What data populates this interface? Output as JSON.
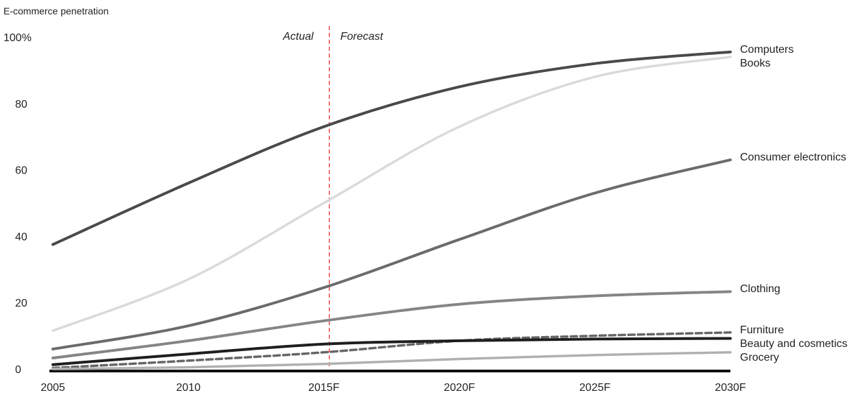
{
  "chart_data": {
    "type": "line",
    "ylabel": "E-commerce penetration",
    "x": [
      2005,
      2010,
      2015,
      2020,
      2025,
      2030
    ],
    "x_tick_labels": [
      "2005",
      "2010",
      "2015F",
      "2020F",
      "2025F",
      "2030F"
    ],
    "y_tick_labels": [
      "0",
      "20",
      "40",
      "60",
      "80",
      "100%"
    ],
    "y_ticks": [
      0,
      20,
      40,
      60,
      80,
      100
    ],
    "ylim": [
      0,
      100
    ],
    "xlim": [
      2005,
      2030
    ],
    "grid": false,
    "divider": {
      "x": 2015.2,
      "left_label": "Actual",
      "right_label": "Forecast",
      "color": "#e3302f"
    },
    "series": [
      {
        "name": "Computers",
        "values": [
          37.5,
          56,
          73,
          85,
          92,
          95.5
        ],
        "color": "#4a4a4a",
        "dashed": false,
        "width": 4
      },
      {
        "name": "Books",
        "values": [
          11.5,
          27,
          50,
          73,
          88,
          94
        ],
        "color": "#dadada",
        "dashed": false,
        "width": 3.5
      },
      {
        "name": "Consumer electronics",
        "values": [
          6,
          13,
          24.5,
          39,
          53,
          63
        ],
        "color": "#6b6b6b",
        "dashed": false,
        "width": 4
      },
      {
        "name": "Clothing",
        "values": [
          3.3,
          8.5,
          14.5,
          19.5,
          22,
          23.3
        ],
        "color": "#858585",
        "dashed": false,
        "width": 4
      },
      {
        "name": "Furniture",
        "values": [
          0.3,
          2.5,
          5,
          8.5,
          10,
          11
        ],
        "color": "#666666",
        "dashed": true,
        "width": 3.5
      },
      {
        "name": "Beauty and cosmetics",
        "values": [
          1.3,
          4.5,
          7.5,
          8.5,
          9,
          9.2
        ],
        "color": "#1e1e1e",
        "dashed": false,
        "width": 4
      },
      {
        "name": "Grocery",
        "values": [
          0,
          0.5,
          1.5,
          3,
          4.2,
          5
        ],
        "color": "#b0b0b0",
        "dashed": false,
        "width": 3.5
      }
    ]
  }
}
